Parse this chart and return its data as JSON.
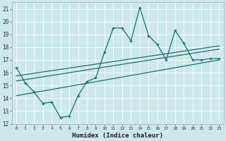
{
  "xlabel": "Humidex (Indice chaleur)",
  "ylabel": "",
  "bg_color": "#cce8ea",
  "grid_color": "#b0d4d8",
  "line_color": "#1a6e6a",
  "xlim": [
    -0.5,
    23.5
  ],
  "ylim": [
    12,
    21.5
  ],
  "x_ticks": [
    0,
    1,
    2,
    3,
    4,
    5,
    6,
    7,
    8,
    9,
    10,
    11,
    12,
    13,
    14,
    15,
    16,
    17,
    18,
    19,
    20,
    21,
    22,
    23
  ],
  "y_ticks": [
    12,
    13,
    14,
    15,
    16,
    17,
    18,
    19,
    20,
    21
  ],
  "main_x": [
    0,
    1,
    2,
    3,
    4,
    5,
    6,
    7,
    8,
    9,
    10,
    11,
    12,
    13,
    14,
    15,
    16,
    17,
    18,
    19,
    20,
    21,
    22,
    23
  ],
  "main_y": [
    16.4,
    15.2,
    14.5,
    13.6,
    13.7,
    12.5,
    12.6,
    14.2,
    15.3,
    15.6,
    17.6,
    19.5,
    19.5,
    18.5,
    21.1,
    18.9,
    18.2,
    17.0,
    19.3,
    18.3,
    17.0,
    17.0,
    17.1,
    17.1
  ],
  "line1_x": [
    0,
    23
  ],
  "line1_y": [
    15.35,
    17.85
  ],
  "line2_x": [
    0,
    23
  ],
  "line2_y": [
    15.75,
    18.1
  ],
  "line3_x": [
    0,
    23
  ],
  "line3_y": [
    14.2,
    17.0
  ]
}
